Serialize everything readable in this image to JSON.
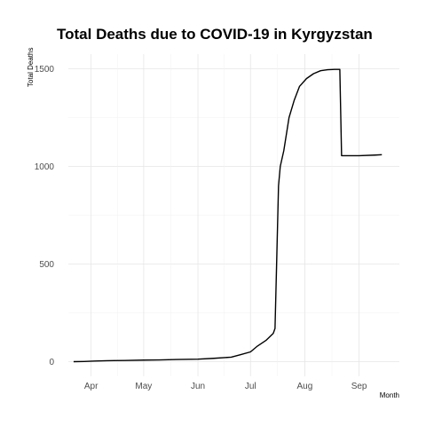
{
  "chart_data": {
    "type": "line",
    "title": "Total Deaths due to COVID-19 in Kyrgyzstan",
    "xlabel": "Month",
    "ylabel": "Total Deaths",
    "x_ticks": [
      "Apr",
      "May",
      "Jun",
      "Jul",
      "Aug",
      "Sep"
    ],
    "x_tick_dates": [
      "2020-04-01",
      "2020-05-01",
      "2020-06-01",
      "2020-07-01",
      "2020-08-01",
      "2020-09-01"
    ],
    "y_ticks": [
      0,
      500,
      1000,
      1500
    ],
    "xlim": [
      "2020-03-19",
      "2020-09-24"
    ],
    "ylim": [
      -75,
      1575
    ],
    "grid": true,
    "legend": "none",
    "series": [
      {
        "x": [
          "2020-03-22",
          "2020-03-28",
          "2020-04-03",
          "2020-04-10",
          "2020-04-20",
          "2020-05-01",
          "2020-05-10",
          "2020-05-20",
          "2020-06-01",
          "2020-06-10",
          "2020-06-20",
          "2020-06-25",
          "2020-07-01",
          "2020-07-05",
          "2020-07-10",
          "2020-07-14",
          "2020-07-15",
          "2020-07-17",
          "2020-07-18",
          "2020-07-20",
          "2020-07-23",
          "2020-07-26",
          "2020-07-29",
          "2020-08-02",
          "2020-08-06",
          "2020-08-10",
          "2020-08-14",
          "2020-08-18",
          "2020-08-21",
          "2020-08-22",
          "2020-09-01",
          "2020-09-10",
          "2020-09-14"
        ],
        "values": [
          0,
          1,
          3,
          5,
          6,
          8,
          9,
          11,
          13,
          17,
          23,
          35,
          50,
          80,
          110,
          145,
          170,
          900,
          1000,
          1080,
          1250,
          1340,
          1410,
          1450,
          1475,
          1490,
          1495,
          1497,
          1497,
          1055,
          1055,
          1058,
          1060
        ]
      }
    ]
  }
}
